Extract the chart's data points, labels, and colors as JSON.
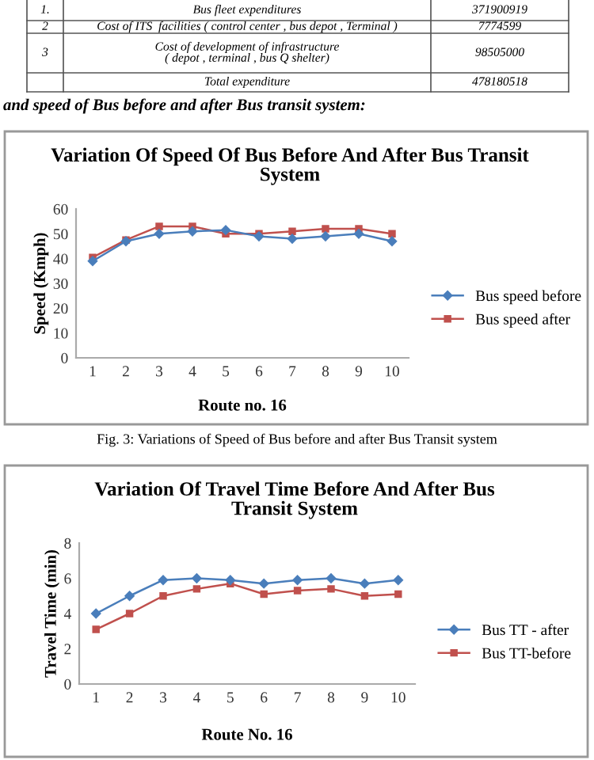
{
  "chart_data": [
    {
      "type": "other",
      "title": "and speed of Bus before and after Bus transit system:",
      "annotations": [
        "1.",
        "Bus fleet expenditures",
        "371900919",
        "2",
        "Cost of ITS  facilities ( control center , bus depot , Terminal )",
        "7774599",
        "3",
        "Cost of development of infrastructure\n( depot , terminal , bus Q shelter)",
        "98505000",
        "Total expenditure",
        "478180518"
      ]
    },
    {
      "type": "line",
      "title": "Variation Of Speed Of Bus Before And After Bus Transit\nSystem",
      "xlabel": "Route no. 16",
      "ylabel": "Speed (Kmph)",
      "categories": [
        "1",
        "2",
        "3",
        "4",
        "5",
        "6",
        "7",
        "8",
        "9",
        "10"
      ],
      "ylim": [
        0,
        60
      ],
      "yticks": [
        0,
        10,
        20,
        30,
        40,
        50,
        60
      ],
      "grid": false,
      "legend": "right",
      "annotations": [
        "Fig. 3: Variations of Speed of Bus before and after Bus Transit system"
      ],
      "series": [
        {
          "name": "Bus speed before",
          "color": "#4a7ebb",
          "marker": "diamond",
          "values": [
            39,
            47,
            50,
            51,
            51.5,
            49,
            48,
            49,
            50,
            47
          ]
        },
        {
          "name": "Bus speed after",
          "color": "#c0504d",
          "marker": "square",
          "values": [
            40.5,
            47.5,
            53,
            53,
            50,
            50,
            51,
            52,
            52,
            50
          ]
        }
      ]
    },
    {
      "type": "line",
      "title": "Variation Of Travel Time Before And After Bus\nTransit System",
      "xlabel": "Route No. 16",
      "ylabel": "Travel Time (min)",
      "categories": [
        "1",
        "2",
        "3",
        "4",
        "5",
        "6",
        "7",
        "8",
        "9",
        "10"
      ],
      "ylim": [
        0,
        8
      ],
      "yticks": [
        0,
        2,
        4,
        6,
        8
      ],
      "grid": false,
      "legend": "right",
      "series": [
        {
          "name": "Bus TT - after",
          "color": "#4a7ebb",
          "marker": "diamond",
          "values": [
            4.0,
            5.0,
            5.9,
            6.0,
            5.9,
            5.7,
            5.9,
            6.0,
            5.7,
            5.9
          ]
        },
        {
          "name": "Bus TT-before",
          "color": "#c0504d",
          "marker": "square",
          "values": [
            3.1,
            4.0,
            5.0,
            5.4,
            5.7,
            5.1,
            5.3,
            5.4,
            5.0,
            5.1
          ]
        }
      ]
    }
  ]
}
